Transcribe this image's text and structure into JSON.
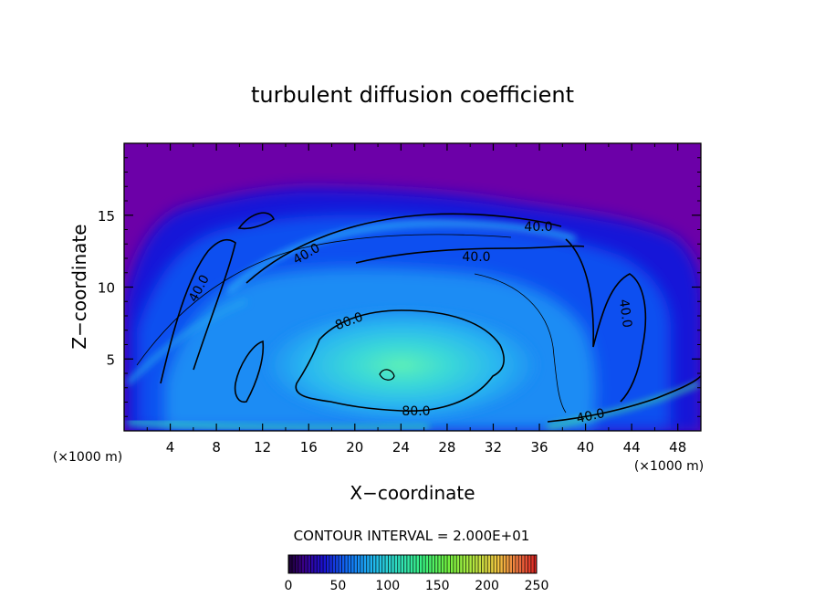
{
  "chart_data": {
    "type": "heatmap",
    "title": "turbulent diffusion coefficient",
    "xlabel": "X−coordinate",
    "ylabel": "Z−coordinate",
    "x_unit_left": "(×1000 m)",
    "x_unit_right": "(×1000 m)",
    "xlim": [
      0,
      50
    ],
    "ylim": [
      0,
      20
    ],
    "x_ticks": [
      4,
      8,
      12,
      16,
      20,
      24,
      28,
      32,
      36,
      40,
      44,
      48
    ],
    "y_ticks": [
      5,
      10,
      15
    ],
    "contour_labels": [
      "40.0",
      "40.0",
      "40.0",
      "40.0",
      "40.0",
      "40.0",
      "80.0",
      "80.0"
    ],
    "contour_interval_text": "CONTOUR INTERVAL = 2.000E+01",
    "colorbar": {
      "range": [
        0,
        250
      ],
      "ticks": [
        0,
        50,
        100,
        150,
        200,
        250
      ]
    },
    "field_description": "Dome-shaped region of elevated values with maximum near x=22-24, z=4; background (0) above ~16 km"
  },
  "colors": {
    "background_field": "#6c00a8",
    "low": "#1010d0",
    "mid": "#1e90ff",
    "high": "#50e8c0"
  }
}
